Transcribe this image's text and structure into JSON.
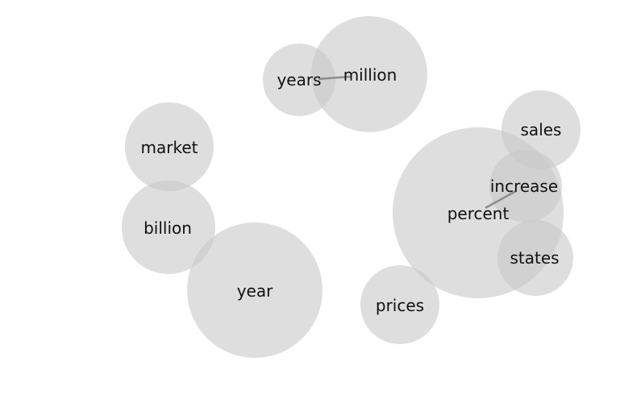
{
  "colors": {
    "bubble_fill": "#c8c8c8",
    "link_stroke": "#8c8c8c",
    "label": "#111111"
  },
  "bubbles": [
    {
      "id": "percent",
      "label": "percent"
    },
    {
      "id": "year",
      "label": "year"
    },
    {
      "id": "million",
      "label": "million"
    },
    {
      "id": "billion",
      "label": "billion"
    },
    {
      "id": "market",
      "label": "market"
    },
    {
      "id": "sales",
      "label": "sales"
    },
    {
      "id": "prices",
      "label": "prices"
    },
    {
      "id": "states",
      "label": "states"
    },
    {
      "id": "increase",
      "label": "increase"
    },
    {
      "id": "years",
      "label": "years"
    }
  ],
  "links": [
    {
      "source": "years",
      "target": "million"
    },
    {
      "source": "percent",
      "target": "increase"
    }
  ]
}
